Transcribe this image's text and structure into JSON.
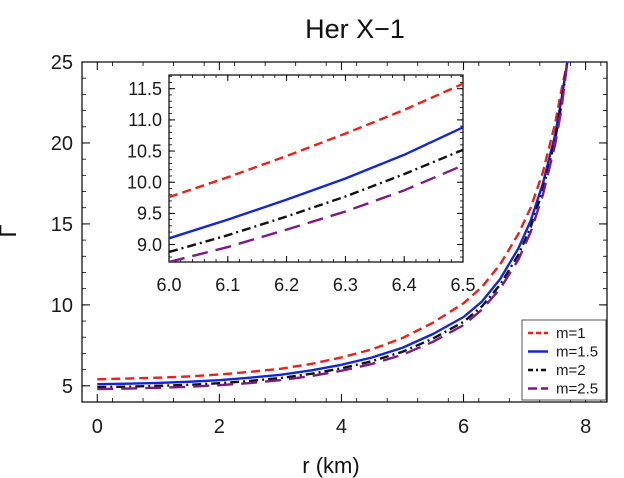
{
  "chart_data": [
    {
      "type": "line",
      "role": "main",
      "title": "Her X−1",
      "xlabel": "r (km)",
      "ylabel": "Γ",
      "xlim": [
        -0.25,
        8.35
      ],
      "ylim": [
        4.0,
        25.0
      ],
      "xticks": [
        0,
        2,
        4,
        6,
        8
      ],
      "yticks": [
        5,
        10,
        15,
        20,
        25
      ],
      "grid": false,
      "legend_position": "bottom-right",
      "series": [
        {
          "name": "m=1",
          "color": "#e8211f",
          "dash": "dashed",
          "x": [
            0,
            0.5,
            1,
            1.5,
            2,
            2.5,
            3,
            3.5,
            4,
            4.5,
            5,
            5.5,
            6,
            6.3,
            6.6,
            6.9,
            7.1,
            7.3,
            7.5,
            7.6,
            7.7,
            7.75
          ],
          "y": [
            5.4,
            5.45,
            5.5,
            5.58,
            5.7,
            5.86,
            6.05,
            6.35,
            6.75,
            7.25,
            7.95,
            8.9,
            10.1,
            11.1,
            12.5,
            14.4,
            16.0,
            18.2,
            21.2,
            23.2,
            25.0,
            25.5
          ]
        },
        {
          "name": "m=1.5",
          "color": "#1226d6",
          "dash": "solid",
          "x": [
            0,
            0.5,
            1,
            1.5,
            2,
            2.5,
            3,
            3.5,
            4,
            4.5,
            5,
            5.5,
            6,
            6.3,
            6.6,
            6.9,
            7.1,
            7.3,
            7.5,
            7.6,
            7.7,
            7.75
          ],
          "y": [
            5.1,
            5.13,
            5.18,
            5.25,
            5.35,
            5.5,
            5.68,
            5.95,
            6.3,
            6.75,
            7.35,
            8.2,
            9.25,
            10.2,
            11.6,
            13.5,
            15.2,
            17.5,
            20.5,
            22.6,
            25.0,
            25.5
          ]
        },
        {
          "name": "m=2",
          "color": "#111111",
          "dash": "dashdot",
          "x": [
            0,
            0.5,
            1,
            1.5,
            2,
            2.5,
            3,
            3.5,
            4,
            4.5,
            5,
            5.5,
            6,
            6.3,
            6.6,
            6.9,
            7.1,
            7.3,
            7.5,
            7.6,
            7.7,
            7.75
          ],
          "y": [
            4.92,
            4.95,
            5.0,
            5.06,
            5.16,
            5.3,
            5.48,
            5.74,
            6.08,
            6.52,
            7.1,
            7.92,
            8.95,
            9.9,
            11.25,
            13.1,
            14.8,
            17.1,
            20.2,
            22.3,
            25.0,
            25.5
          ]
        },
        {
          "name": "m=2.5",
          "color": "#7d1a86",
          "dash": "longdash",
          "x": [
            0,
            0.5,
            1,
            1.5,
            2,
            2.5,
            3,
            3.5,
            4,
            4.5,
            5,
            5.5,
            6,
            6.3,
            6.6,
            6.9,
            7.1,
            7.3,
            7.5,
            7.6,
            7.7,
            7.75
          ],
          "y": [
            4.8,
            4.83,
            4.88,
            4.94,
            5.04,
            5.17,
            5.35,
            5.6,
            5.93,
            6.35,
            6.92,
            7.72,
            8.75,
            9.7,
            11.0,
            12.8,
            14.5,
            16.8,
            19.9,
            22.0,
            25.0,
            25.5
          ]
        }
      ]
    },
    {
      "type": "line",
      "role": "inset",
      "xlim": [
        6.0,
        6.5
      ],
      "ylim": [
        8.72,
        11.72
      ],
      "xticks": [
        "6.0",
        "6.1",
        "6.2",
        "6.3",
        "6.4",
        "6.5"
      ],
      "yticks": [
        "9.0",
        "9.5",
        "10.0",
        "10.5",
        "11.0",
        "11.5"
      ],
      "grid": false,
      "series": [
        {
          "name": "m=1",
          "color": "#e8211f",
          "dash": "dashed",
          "x": [
            6.0,
            6.1,
            6.2,
            6.3,
            6.4,
            6.5
          ],
          "y": [
            9.76,
            10.08,
            10.42,
            10.78,
            11.16,
            11.58
          ]
        },
        {
          "name": "m=1.5",
          "color": "#1226d6",
          "dash": "solid",
          "x": [
            6.0,
            6.1,
            6.2,
            6.3,
            6.4,
            6.5
          ],
          "y": [
            9.1,
            9.4,
            9.72,
            10.06,
            10.44,
            10.88
          ]
        },
        {
          "name": "m=2",
          "color": "#111111",
          "dash": "dashdot",
          "x": [
            6.0,
            6.1,
            6.2,
            6.3,
            6.4,
            6.5
          ],
          "y": [
            8.88,
            9.15,
            9.45,
            9.77,
            10.13,
            10.52
          ]
        },
        {
          "name": "m=2.5",
          "color": "#7d1a86",
          "dash": "longdash",
          "x": [
            6.0,
            6.1,
            6.2,
            6.3,
            6.4,
            6.5
          ],
          "y": [
            8.72,
            8.96,
            9.24,
            9.53,
            9.87,
            10.27
          ]
        }
      ]
    }
  ]
}
